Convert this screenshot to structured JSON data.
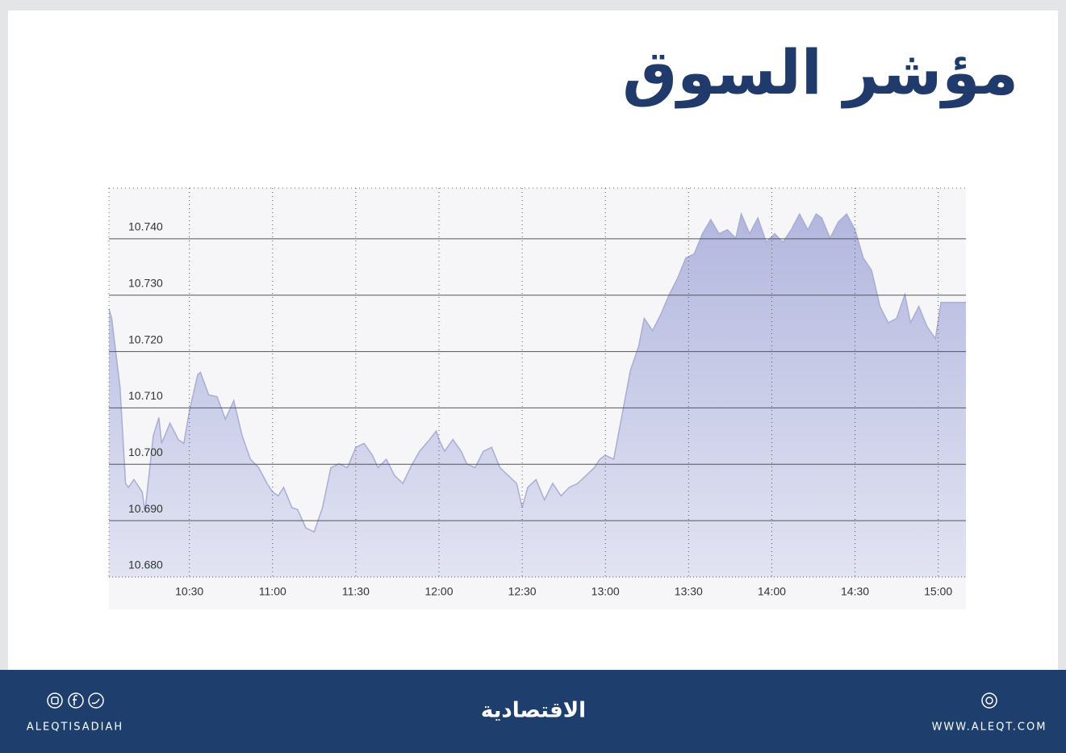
{
  "header": {
    "title": "مؤشر السوق"
  },
  "chart_data": {
    "type": "area",
    "x": [
      "10:01",
      "10:02",
      "10:05",
      "10:07",
      "10:08",
      "10:10",
      "10:13",
      "10:14",
      "10:17",
      "10:19",
      "10:20",
      "10:23",
      "10:26",
      "10:28",
      "10:30",
      "10:33",
      "10:34",
      "10:37",
      "10:40",
      "10:43",
      "10:46",
      "10:49",
      "10:52",
      "10:55",
      "10:58",
      "11:00",
      "11:02",
      "11:04",
      "11:07",
      "11:09",
      "11:12",
      "11:15",
      "11:18",
      "11:21",
      "11:24",
      "11:27",
      "11:30",
      "11:33",
      "11:36",
      "11:38",
      "11:41",
      "11:44",
      "11:47",
      "11:50",
      "11:53",
      "11:56",
      "11:59",
      "12:00",
      "12:02",
      "12:05",
      "12:08",
      "12:10",
      "12:13",
      "12:16",
      "12:19",
      "12:22",
      "12:25",
      "12:28",
      "12:30",
      "12:32",
      "12:35",
      "12:38",
      "12:41",
      "12:44",
      "12:47",
      "12:50",
      "12:53",
      "12:56",
      "12:58",
      "13:00",
      "13:03",
      "13:06",
      "13:09",
      "13:12",
      "13:14",
      "13:17",
      "13:20",
      "13:23",
      "13:26",
      "13:29",
      "13:32",
      "13:35",
      "13:38",
      "13:41",
      "13:44",
      "13:47",
      "13:49",
      "13:52",
      "13:55",
      "13:58",
      "14:01",
      "14:04",
      "14:07",
      "14:10",
      "14:13",
      "14:16",
      "14:18",
      "14:21",
      "14:24",
      "14:27",
      "14:30",
      "14:33",
      "14:36",
      "14:39",
      "14:42",
      "14:45",
      "14:48",
      "14:50",
      "14:53",
      "14:56",
      "14:59",
      "15:01",
      "15:10"
    ],
    "values": [
      10.7276,
      10.7259,
      10.7137,
      10.6966,
      10.6959,
      10.6973,
      10.6951,
      10.6916,
      10.7051,
      10.7083,
      10.7037,
      10.7073,
      10.7044,
      10.7037,
      10.7094,
      10.7159,
      10.7163,
      10.7123,
      10.712,
      10.708,
      10.7113,
      10.7051,
      10.7009,
      10.6994,
      10.6966,
      10.6951,
      10.6944,
      10.6959,
      10.6923,
      10.692,
      10.6887,
      10.688,
      10.6923,
      10.6994,
      10.7001,
      10.6994,
      10.703,
      10.7037,
      10.7016,
      10.6994,
      10.7009,
      10.698,
      10.6966,
      10.6997,
      10.7023,
      10.704,
      10.7059,
      10.7044,
      10.7023,
      10.7044,
      10.7023,
      10.7001,
      10.6994,
      10.7023,
      10.703,
      10.6994,
      10.698,
      10.6966,
      10.6923,
      10.6959,
      10.6973,
      10.6937,
      10.6966,
      10.6944,
      10.6959,
      10.6966,
      10.698,
      10.6994,
      10.7009,
      10.7016,
      10.7009,
      10.7087,
      10.7166,
      10.7209,
      10.7259,
      10.7237,
      10.7266,
      10.7301,
      10.733,
      10.7366,
      10.7373,
      10.7409,
      10.7434,
      10.7409,
      10.7416,
      10.7401,
      10.7444,
      10.7409,
      10.7437,
      10.7394,
      10.7409,
      10.7394,
      10.7416,
      10.7444,
      10.7416,
      10.7444,
      10.7437,
      10.7401,
      10.743,
      10.7444,
      10.7416,
      10.7366,
      10.7344,
      10.728,
      10.7251,
      10.7259,
      10.7301,
      10.7251,
      10.728,
      10.7244,
      10.7223,
      10.7287,
      10.7287
    ],
    "color": "#a9add6",
    "xlim": [
      "10:01",
      "15:10"
    ],
    "xticks": [
      "10:30",
      "11:00",
      "11:30",
      "12:00",
      "12:30",
      "13:00",
      "13:30",
      "14:00",
      "14:30",
      "15:00"
    ],
    "ylim": [
      10.68,
      10.749
    ],
    "yticks": [
      {
        "value": 10.68,
        "label": "10.680"
      },
      {
        "value": 10.69,
        "label": "10.690"
      },
      {
        "value": 10.7,
        "label": "10.700"
      },
      {
        "value": 10.71,
        "label": "10.710"
      },
      {
        "value": 10.72,
        "label": "10.720"
      },
      {
        "value": 10.73,
        "label": "10.730"
      },
      {
        "value": 10.74,
        "label": "10.740"
      }
    ],
    "grid": true
  },
  "footer": {
    "handle": "ALEQTISADIAH",
    "brand": "الاقتصادية",
    "website": "WWW.ALEQT.COM"
  }
}
